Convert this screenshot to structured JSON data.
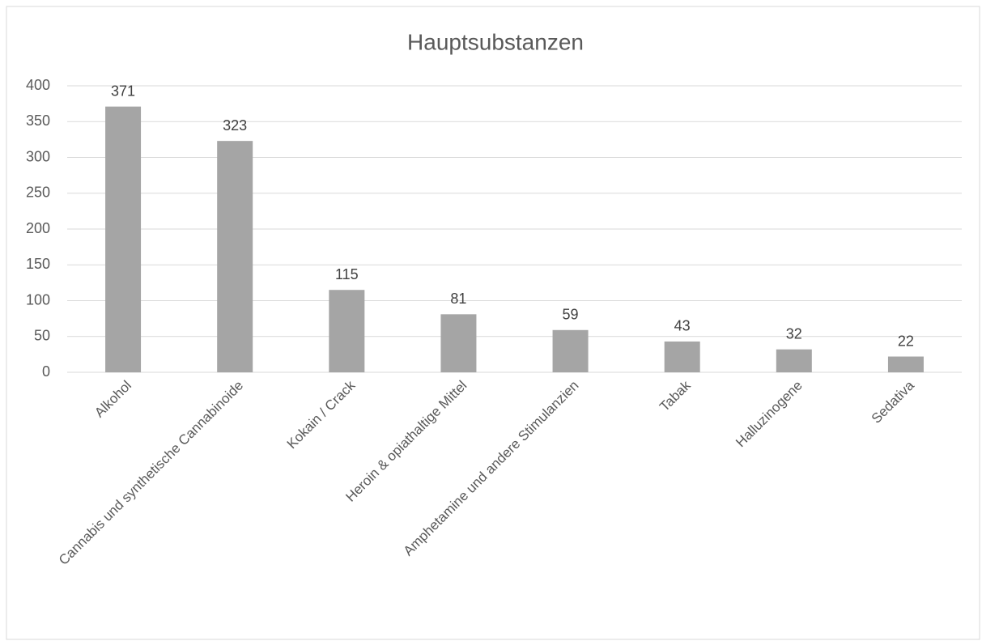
{
  "chart_data": {
    "type": "bar",
    "title": "Hauptsubstanzen",
    "categories": [
      "Alkohol",
      "Cannabis und synthetische Cannabinoide",
      "Kokain / Crack",
      "Heroin & opiathaltige Mittel",
      "Amphetamine und andere Stimulanzien",
      "Tabak",
      "Halluzinogene",
      "Sedativa"
    ],
    "values": [
      371,
      323,
      115,
      81,
      59,
      43,
      32,
      22
    ],
    "color": "#a5a5a5",
    "ylim": [
      0,
      400
    ],
    "yticks": [
      0,
      50,
      100,
      150,
      200,
      250,
      300,
      350,
      400
    ],
    "grid": true
  }
}
